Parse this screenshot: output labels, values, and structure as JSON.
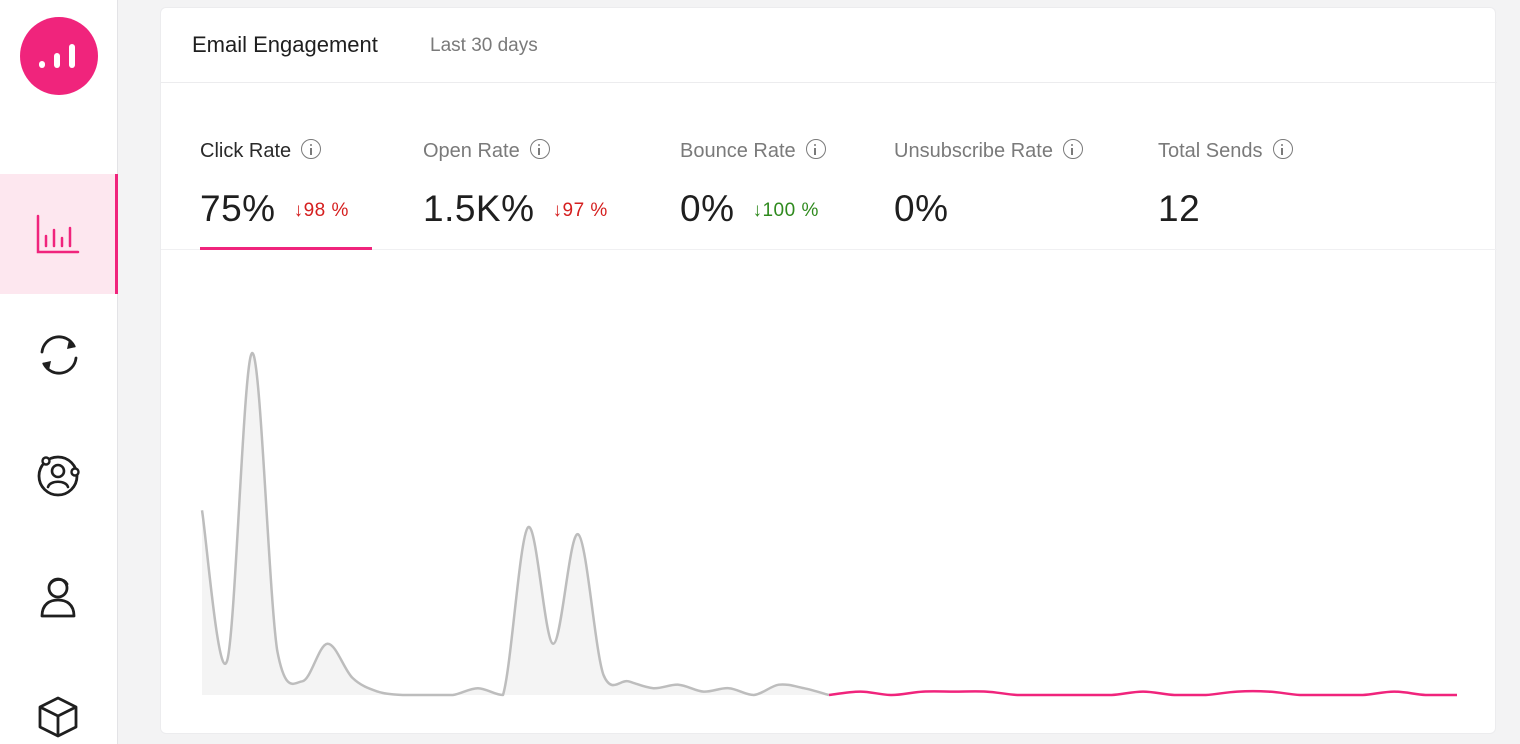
{
  "colors": {
    "accent": "#f0247c",
    "accent_light": "#fde7ef",
    "negative": "#d51f1f",
    "positive": "#2f8a1e",
    "previous_series": "#bdbdbd"
  },
  "sidebar": {
    "logo_icon": "bar-chart-logo-icon",
    "items": [
      {
        "icon": "analytics-icon",
        "active": true
      },
      {
        "icon": "sync-icon",
        "active": false
      },
      {
        "icon": "audience-icon",
        "active": false
      },
      {
        "icon": "contact-icon",
        "active": false
      },
      {
        "icon": "package-icon",
        "active": false
      }
    ]
  },
  "card": {
    "title": "Email Engagement",
    "subtitle": "Last 30 days"
  },
  "metrics": [
    {
      "label": "Click Rate",
      "value": "75%",
      "delta": "↓98 %",
      "delta_type": "down",
      "active": true
    },
    {
      "label": "Open Rate",
      "value": "1.5K%",
      "delta": "↓97 %",
      "delta_type": "down",
      "active": false
    },
    {
      "label": "Bounce Rate",
      "value": "0%",
      "delta": "↓100 %",
      "delta_type": "good",
      "active": false
    },
    {
      "label": "Unsubscribe Rate",
      "value": "0%",
      "delta": "",
      "delta_type": "",
      "active": false
    },
    {
      "label": "Total Sends",
      "value": "12",
      "delta": "",
      "delta_type": "",
      "active": false
    }
  ],
  "chart_data": {
    "type": "line",
    "previous_period": [
      0.54,
      0.1,
      1.0,
      0.13,
      0.04,
      0.15,
      0.05,
      0.01,
      0.0,
      0.0,
      0.0,
      0.02,
      0.0,
      0.49,
      0.15,
      0.47,
      0.06,
      0.04,
      0.02,
      0.03,
      0.01,
      0.02,
      0.0,
      0.03,
      0.02,
      0.0
    ],
    "current_period": [
      0.0,
      0.01,
      0.0,
      0.01,
      0.01,
      0.01,
      0.0,
      0.0,
      0.0,
      0.0,
      0.01,
      0.0,
      0.0,
      0.01,
      0.01,
      0.0,
      0.0,
      0.0,
      0.01,
      0.0,
      0.0
    ]
  }
}
